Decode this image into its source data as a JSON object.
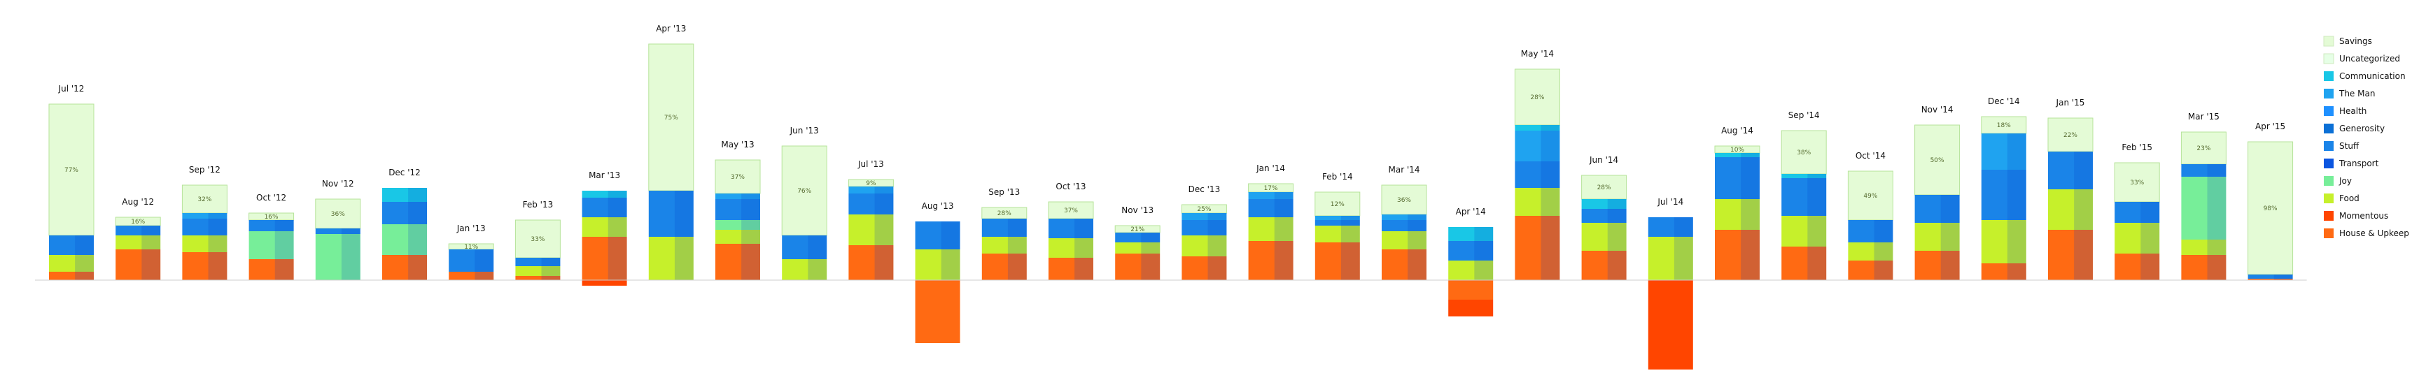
{
  "chart_data": {
    "type": "bar",
    "stacked": true,
    "categories": [
      "Jul '12",
      "Aug '12",
      "Sep '12",
      "Oct '12",
      "Nov '12",
      "Dec '12",
      "Jan '13",
      "Feb '13",
      "Mar '13",
      "Apr '13",
      "May '13",
      "Jun '13",
      "Jul '13",
      "Aug '13",
      "Sep '13",
      "Oct '13",
      "Nov '13",
      "Dec '13",
      "Jan '14",
      "Feb '14",
      "Mar '14",
      "Apr '14",
      "May '14",
      "Jun '14",
      "Jul '14",
      "Aug '14",
      "Sep '14",
      "Oct '14",
      "Nov '14",
      "Dec '14",
      "Jan '15",
      "Feb '15",
      "Mar '15",
      "Apr '15"
    ],
    "savings_percent": [
      "77%",
      "16%",
      "32%",
      "16%",
      "36%",
      "",
      "11%",
      "33%",
      "",
      "75%",
      "37%",
      "76%",
      "9%",
      "",
      "28%",
      "37%",
      "21%",
      "25%",
      "17%",
      "12%",
      "36%",
      "",
      "28%",
      "28%",
      "",
      "10%",
      "38%",
      "49%",
      "50%",
      "18%",
      "22%",
      "33%",
      "23%",
      "98%"
    ],
    "series": [
      {
        "name": "House & Upkeep",
        "color": "#ff6a13",
        "values": [
          12,
          44,
          40,
          30,
          0,
          36,
          12,
          6,
          62,
          0,
          52,
          0,
          50,
          -90,
          38,
          32,
          38,
          34,
          56,
          54,
          44,
          -28,
          92,
          42,
          0,
          72,
          48,
          28,
          42,
          24,
          72,
          38,
          36,
          2
        ]
      },
      {
        "name": "Momentous",
        "color": "#ff4500",
        "values": [
          0,
          0,
          0,
          0,
          0,
          0,
          0,
          0,
          -8,
          0,
          0,
          0,
          0,
          0,
          0,
          0,
          0,
          0,
          0,
          0,
          0,
          -24,
          0,
          0,
          -128,
          0,
          0,
          0,
          0,
          0,
          0,
          0,
          0,
          0
        ]
      },
      {
        "name": "Food",
        "color": "#c6f02b",
        "values": [
          24,
          20,
          24,
          0,
          0,
          0,
          0,
          14,
          28,
          62,
          20,
          30,
          44,
          44,
          24,
          28,
          16,
          30,
          34,
          24,
          26,
          28,
          40,
          40,
          62,
          44,
          44,
          26,
          40,
          62,
          58,
          44,
          22,
          0
        ]
      },
      {
        "name": "Joy",
        "color": "#77ee99",
        "values": [
          0,
          0,
          0,
          40,
          66,
          44,
          0,
          0,
          0,
          0,
          14,
          0,
          0,
          0,
          0,
          0,
          0,
          0,
          0,
          0,
          0,
          0,
          0,
          0,
          0,
          0,
          0,
          0,
          0,
          0,
          0,
          0,
          90,
          0
        ]
      },
      {
        "name": "Transport",
        "color": "#0b55e0",
        "values": [
          0,
          0,
          0,
          0,
          0,
          0,
          0,
          0,
          0,
          0,
          0,
          0,
          0,
          0,
          0,
          0,
          0,
          0,
          0,
          0,
          0,
          0,
          0,
          0,
          0,
          0,
          0,
          0,
          0,
          0,
          0,
          0,
          0,
          0
        ]
      },
      {
        "name": "Stuff",
        "color": "#1a84e8",
        "values": [
          28,
          14,
          24,
          16,
          8,
          32,
          32,
          12,
          28,
          66,
          30,
          34,
          30,
          40,
          26,
          28,
          14,
          22,
          26,
          8,
          16,
          28,
          38,
          20,
          28,
          60,
          54,
          32,
          40,
          72,
          54,
          30,
          18,
          6
        ]
      },
      {
        "name": "Generosity",
        "color": "#0b70d6",
        "values": [
          0,
          0,
          0,
          0,
          0,
          0,
          0,
          0,
          0,
          0,
          0,
          0,
          0,
          0,
          0,
          0,
          0,
          0,
          0,
          0,
          0,
          0,
          0,
          0,
          0,
          0,
          0,
          0,
          0,
          0,
          0,
          0,
          0,
          0
        ]
      },
      {
        "name": "Health",
        "color": "#1e90ff",
        "values": [
          0,
          0,
          0,
          0,
          0,
          0,
          0,
          0,
          0,
          0,
          0,
          0,
          0,
          0,
          0,
          0,
          0,
          0,
          0,
          0,
          0,
          0,
          0,
          0,
          0,
          0,
          0,
          0,
          0,
          0,
          0,
          0,
          0,
          0
        ]
      },
      {
        "name": "The Man",
        "color": "#1fa3f0",
        "values": [
          0,
          0,
          8,
          0,
          0,
          0,
          0,
          0,
          0,
          0,
          8,
          0,
          10,
          0,
          0,
          0,
          0,
          10,
          10,
          6,
          8,
          0,
          44,
          0,
          0,
          0,
          0,
          0,
          0,
          52,
          0,
          0,
          0,
          0
        ]
      },
      {
        "name": "Communication",
        "color": "#19c7e6",
        "values": [
          0,
          0,
          0,
          0,
          0,
          20,
          0,
          0,
          10,
          0,
          0,
          0,
          0,
          0,
          0,
          0,
          0,
          0,
          0,
          0,
          0,
          20,
          8,
          14,
          0,
          6,
          6,
          0,
          0,
          0,
          0,
          0,
          0,
          0
        ]
      },
      {
        "name": "Uncategorized",
        "color": "#e6ffe6",
        "values": [
          0,
          0,
          0,
          0,
          0,
          0,
          0,
          0,
          0,
          0,
          0,
          0,
          0,
          0,
          0,
          0,
          0,
          0,
          0,
          0,
          0,
          0,
          0,
          0,
          0,
          0,
          0,
          0,
          0,
          0,
          0,
          0,
          0,
          0
        ]
      },
      {
        "name": "Savings",
        "color": "#e4fbd6",
        "values": [
          188,
          12,
          40,
          10,
          42,
          0,
          8,
          54,
          0,
          210,
          48,
          128,
          10,
          0,
          16,
          24,
          10,
          12,
          12,
          34,
          42,
          0,
          80,
          34,
          0,
          10,
          62,
          70,
          100,
          24,
          48,
          56,
          46,
          190
        ]
      }
    ],
    "legend": {
      "position": "right",
      "entries": [
        {
          "label": "Savings",
          "color": "#e4fbd6"
        },
        {
          "label": "Uncategorized",
          "color": "#e6ffe6"
        },
        {
          "label": "Communication",
          "color": "#19c7e6"
        },
        {
          "label": "The Man",
          "color": "#1fa3f0"
        },
        {
          "label": "Health",
          "color": "#1e90ff"
        },
        {
          "label": "Generosity",
          "color": "#0b70d6"
        },
        {
          "label": "Stuff",
          "color": "#1a84e8"
        },
        {
          "label": "Transport",
          "color": "#0b55e0"
        },
        {
          "label": "Joy",
          "color": "#77ee99"
        },
        {
          "label": "Food",
          "color": "#c6f02b"
        },
        {
          "label": "Momentous",
          "color": "#ff4500"
        },
        {
          "label": "House & Upkeep",
          "color": "#ff6a13"
        }
      ]
    },
    "grid": false
  }
}
